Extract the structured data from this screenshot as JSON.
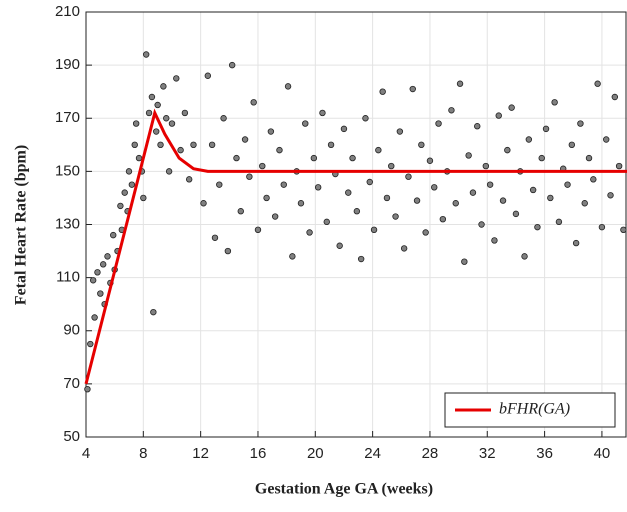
{
  "chart_data": {
    "type": "scatter",
    "xlabel": "Gestation Age GA (weeks)",
    "ylabel": "Fetal Heart Rate (bpm)",
    "xlim": [
      4,
      41.75
    ],
    "xticks": [
      4,
      8,
      12,
      16,
      20,
      24,
      28,
      32,
      36,
      40
    ],
    "ylim": [
      50,
      210
    ],
    "yticks": [
      50,
      70,
      90,
      110,
      130,
      150,
      170,
      190,
      210
    ],
    "grid": true,
    "legend": "lower right",
    "series": [
      {
        "type": "scatter",
        "color": "#808080",
        "x": [
          4.1,
          4.3,
          4.5,
          4.6,
          4.8,
          5.0,
          5.2,
          5.3,
          5.5,
          5.7,
          5.9,
          6.0,
          6.2,
          6.4,
          6.5,
          6.7,
          6.9,
          7.0,
          7.2,
          7.4,
          7.5,
          7.7,
          7.9,
          8.0,
          8.2,
          8.4,
          8.6,
          8.7,
          8.9,
          9.0,
          9.2,
          9.4,
          9.6,
          9.8,
          10.0,
          10.3,
          10.6,
          10.9,
          11.2,
          11.5,
          12.2,
          12.5,
          12.8,
          13.0,
          13.3,
          13.6,
          13.9,
          14.2,
          14.5,
          14.8,
          15.1,
          15.4,
          15.7,
          16.0,
          16.3,
          16.6,
          16.9,
          17.2,
          17.5,
          17.8,
          18.1,
          18.4,
          18.7,
          19.0,
          19.3,
          19.6,
          19.9,
          20.2,
          20.5,
          20.8,
          21.1,
          21.4,
          21.7,
          22.0,
          22.3,
          22.6,
          22.9,
          23.2,
          23.5,
          23.8,
          24.1,
          24.4,
          24.7,
          25.0,
          25.3,
          25.6,
          25.9,
          26.2,
          26.5,
          26.8,
          27.1,
          27.4,
          27.7,
          28.0,
          28.3,
          28.6,
          28.9,
          29.2,
          29.5,
          29.8,
          30.1,
          30.4,
          30.7,
          31.0,
          31.3,
          31.6,
          31.9,
          32.2,
          32.5,
          32.8,
          33.1,
          33.4,
          33.7,
          34.0,
          34.3,
          34.6,
          34.9,
          35.2,
          35.5,
          35.8,
          36.1,
          36.4,
          36.7,
          37.0,
          37.3,
          37.6,
          37.9,
          38.2,
          38.5,
          38.8,
          39.1,
          39.4,
          39.7,
          40.0,
          40.3,
          40.6,
          40.9,
          41.2,
          41.5
        ],
        "y": [
          68,
          85,
          109,
          95,
          112,
          104,
          115,
          100,
          118,
          108,
          126,
          113,
          120,
          137,
          128,
          142,
          135,
          150,
          145,
          160,
          168,
          155,
          150,
          140,
          194,
          172,
          178,
          97,
          165,
          175,
          160,
          182,
          170,
          150,
          168,
          185,
          158,
          172,
          147,
          160,
          138,
          186,
          160,
          125,
          145,
          170,
          120,
          190,
          155,
          135,
          162,
          148,
          176,
          128,
          152,
          140,
          165,
          133,
          158,
          145,
          182,
          118,
          150,
          138,
          168,
          127,
          155,
          144,
          172,
          131,
          160,
          149,
          122,
          166,
          142,
          155,
          135,
          117,
          170,
          146,
          128,
          158,
          180,
          140,
          152,
          133,
          165,
          121,
          148,
          181,
          139,
          160,
          127,
          154,
          144,
          168,
          132,
          150,
          173,
          138,
          183,
          116,
          156,
          142,
          167,
          130,
          152,
          145,
          124,
          171,
          139,
          158,
          174,
          134,
          150,
          118,
          162,
          143,
          129,
          155,
          166,
          140,
          176,
          131,
          151,
          145,
          160,
          123,
          168,
          138,
          155,
          147,
          183,
          129,
          162,
          141,
          178,
          152,
          128
        ]
      },
      {
        "type": "line",
        "name": "bFHR(GA)",
        "color": "#e60000",
        "x": [
          4,
          8.8,
          9.5,
          10.5,
          11.5,
          12.5,
          41.75
        ],
        "y": [
          70,
          172,
          164,
          155,
          151,
          150,
          150
        ]
      }
    ]
  }
}
